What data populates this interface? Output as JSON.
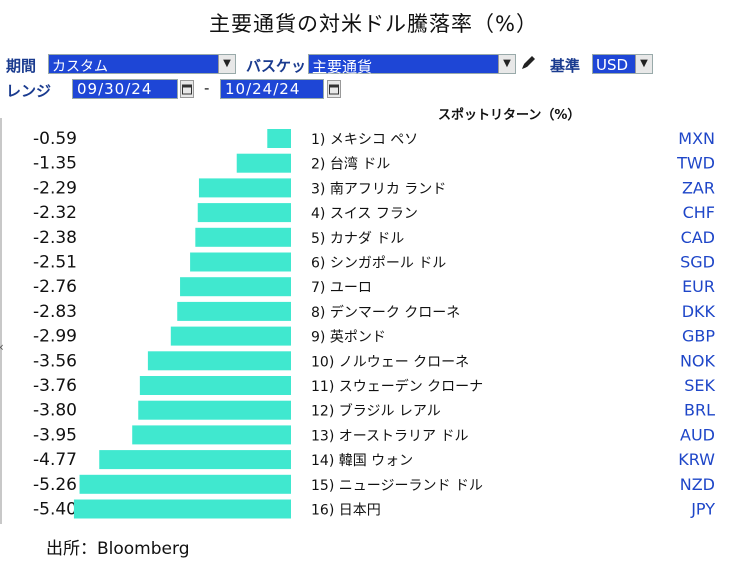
{
  "title": "主要通貨の対米ドル騰落率（%）",
  "controls": {
    "period_label": "期間",
    "period_value": "カスタム",
    "basket_label": "バスケット",
    "basket_value": "主要通貨",
    "base_label": "基準",
    "base_value": "USD",
    "range_label": "レンジ",
    "start_date": "09/30/24",
    "separator": "-",
    "end_date": "10/24/24"
  },
  "column_header": "スポットリターン（%）",
  "source": "出所：Bloomberg",
  "colors": {
    "bar": "#40e8cf",
    "code": "#1e46c8",
    "control_bg": "#1e46d6"
  },
  "chart_data": {
    "type": "bar",
    "orientation": "horizontal",
    "title": "主要通貨の対米ドル騰落率（%）",
    "value_label": "スポットリターン（%）",
    "xlim": [
      -5.4,
      0
    ],
    "categories": [
      "1) メキシコ ペソ",
      "2) 台湾 ドル",
      "3) 南アフリカ ランド",
      "4) スイス フラン",
      "5) カナダ ドル",
      "6) シンガポール ドル",
      "7) ユーロ",
      "8) デンマーク クローネ",
      "9) 英ポンド",
      "10) ノルウェー クローネ",
      "11) スウェーデン クローナ",
      "12) ブラジル レアル",
      "13) オーストラリア ドル",
      "14) 韓国 ウォン",
      "15) ニュージーランド ドル",
      "16) 日本円"
    ],
    "values": [
      -0.59,
      -1.35,
      -2.29,
      -2.32,
      -2.38,
      -2.51,
      -2.76,
      -2.83,
      -2.99,
      -3.56,
      -3.76,
      -3.8,
      -3.95,
      -4.77,
      -5.26,
      -5.4
    ],
    "value_labels": [
      "-0.59",
      "-1.35",
      "-2.29",
      "-2.32",
      "-2.38",
      "-2.51",
      "-2.76",
      "-2.83",
      "-2.99",
      "-3.56",
      "-3.76",
      "-3.80",
      "-3.95",
      "-4.77",
      "-5.26",
      "-5.40"
    ],
    "codes": [
      "MXN",
      "TWD",
      "ZAR",
      "CHF",
      "CAD",
      "SGD",
      "EUR",
      "DKK",
      "GBP",
      "NOK",
      "SEK",
      "BRL",
      "AUD",
      "KRW",
      "NZD",
      "JPY"
    ]
  }
}
